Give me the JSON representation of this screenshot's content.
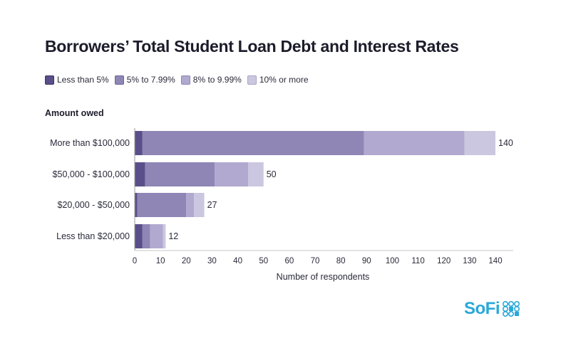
{
  "title": "Borrowers’ Total Student Loan Debt and Interest Rates",
  "legend": [
    {
      "label": "Less than 5%",
      "color": "#5b4f8a"
    },
    {
      "label": "5% to 7.99%",
      "color": "#8f86b6"
    },
    {
      "label": "8% to 9.99%",
      "color": "#b1a9cf"
    },
    {
      "label": "10% or more",
      "color": "#ccc7e0"
    }
  ],
  "axis_title_y": "Amount owed",
  "brand": {
    "name": "SoFi",
    "color": "#29a8d8"
  },
  "chart_data": {
    "type": "bar",
    "orientation": "horizontal",
    "stacked": true,
    "categories": [
      "More than $100,000",
      "$50,000 - $100,000",
      "$20,000 - $50,000",
      "Less than $20,000"
    ],
    "series": [
      {
        "name": "Less than 5%",
        "values": [
          3,
          4,
          1,
          3
        ]
      },
      {
        "name": "5% to 7.99%",
        "values": [
          86,
          27,
          19,
          3
        ]
      },
      {
        "name": "8% to 9.99%",
        "values": [
          39,
          13,
          3,
          5
        ]
      },
      {
        "name": "10% or more",
        "values": [
          12,
          6,
          4,
          1
        ]
      }
    ],
    "totals": [
      "140",
      "50",
      "27",
      "12"
    ],
    "xlabel": "Number of respondents",
    "ylabel": "Amount owed",
    "xlim": [
      0,
      140
    ],
    "xticks": [
      "0",
      "10",
      "20",
      "30",
      "40",
      "50",
      "60",
      "70",
      "80",
      "90",
      "100",
      "110",
      "120",
      "130",
      "140"
    ],
    "grid": false,
    "legend_position": "top-left"
  }
}
